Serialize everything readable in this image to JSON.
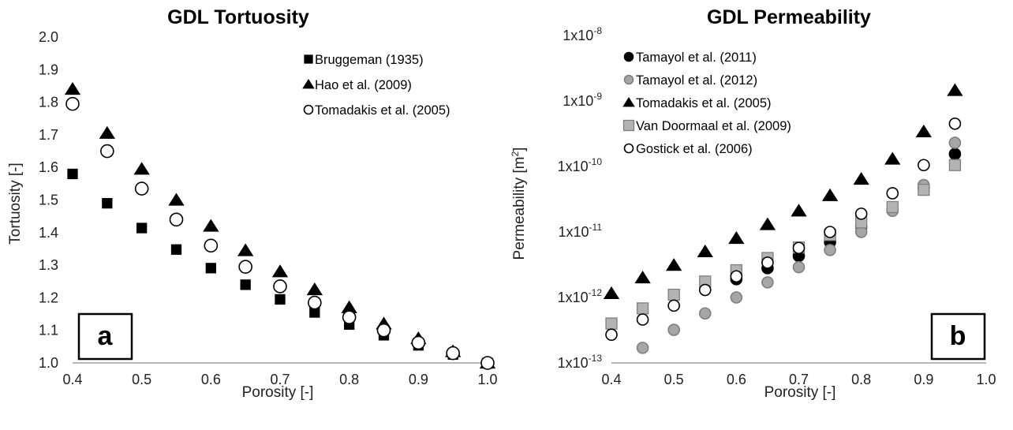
{
  "chart_data": [
    {
      "type": "scatter",
      "title": "GDL Tortuosity",
      "xlabel": "Porosity [-]",
      "ylabel": "Tortuosity [-]",
      "panel_label": "a",
      "xlim": [
        0.4,
        1.0
      ],
      "ylim": [
        1.0,
        2.0
      ],
      "xticks": [
        0.4,
        0.5,
        0.6,
        0.7,
        0.8,
        0.9,
        1.0
      ],
      "xtick_labels": [
        "0.4",
        "0.5",
        "0.6",
        "0.7",
        "0.8",
        "0.9",
        "1.0"
      ],
      "yticks": [
        1.0,
        1.1,
        1.2,
        1.3,
        1.4,
        1.5,
        1.6,
        1.7,
        1.8,
        1.9,
        2.0
      ],
      "ytick_labels": [
        "1.0",
        "1.1",
        "1.2",
        "1.3",
        "1.4",
        "1.5",
        "1.6",
        "1.7",
        "1.8",
        "1.9",
        "2.0"
      ],
      "legend_position": "top-right",
      "series": [
        {
          "name": "Bruggeman (1935)",
          "marker": "square",
          "fill": "#000000",
          "stroke": "#000000",
          "x": [
            0.4,
            0.45,
            0.5,
            0.55,
            0.6,
            0.65,
            0.7,
            0.75,
            0.8,
            0.85,
            0.9,
            0.95,
            1.0
          ],
          "y": [
            1.58,
            1.49,
            1.414,
            1.348,
            1.291,
            1.24,
            1.195,
            1.155,
            1.118,
            1.085,
            1.054,
            1.026,
            1.0
          ]
        },
        {
          "name": "Hao et al. (2009)",
          "marker": "triangle",
          "fill": "#000000",
          "stroke": "#000000",
          "x": [
            0.4,
            0.45,
            0.5,
            0.55,
            0.6,
            0.65,
            0.7,
            0.75,
            0.8,
            0.85,
            0.9,
            0.95,
            1.0
          ],
          "y": [
            1.84,
            1.705,
            1.595,
            1.5,
            1.42,
            1.345,
            1.28,
            1.225,
            1.17,
            1.12,
            1.075,
            1.035,
            1.0
          ]
        },
        {
          "name": "Tomadakis et al. (2005)",
          "marker": "circle",
          "fill": "#ffffff",
          "stroke": "#000000",
          "x": [
            0.4,
            0.45,
            0.5,
            0.55,
            0.6,
            0.65,
            0.7,
            0.75,
            0.8,
            0.85,
            0.9,
            0.95,
            1.0
          ],
          "y": [
            1.795,
            1.65,
            1.535,
            1.44,
            1.36,
            1.295,
            1.235,
            1.185,
            1.14,
            1.1,
            1.062,
            1.03,
            1.0
          ]
        }
      ]
    },
    {
      "type": "scatter",
      "title": "GDL Permeability",
      "xlabel": "Porosity [-]",
      "ylabel": "Permeability [m",
      "ylabel_sup": "2",
      "ylabel_end": "]",
      "panel_label": "b",
      "y_scale": "log",
      "xlim": [
        0.4,
        1.0
      ],
      "ylim": [
        1e-13,
        1e-08
      ],
      "xticks": [
        0.4,
        0.5,
        0.6,
        0.7,
        0.8,
        0.9,
        1.0
      ],
      "xtick_labels": [
        "0.4",
        "0.5",
        "0.6",
        "0.7",
        "0.8",
        "0.9",
        "1.0"
      ],
      "yticks": [
        1e-13,
        1e-12,
        1e-11,
        1e-10,
        1e-09,
        1e-08
      ],
      "ytick_labels": [
        {
          "base": "1x10",
          "exp": "-13"
        },
        {
          "base": "1x10",
          "exp": "-12"
        },
        {
          "base": "1x10",
          "exp": "-11"
        },
        {
          "base": "1x10",
          "exp": "-10"
        },
        {
          "base": "1x10",
          "exp": "-9"
        },
        {
          "base": "1x10",
          "exp": "-8"
        }
      ],
      "legend_position": "top-left",
      "series": [
        {
          "name": "Tamayol et al. (2011)",
          "marker": "circle",
          "fill": "#000000",
          "stroke": "#000000",
          "x": [
            0.6,
            0.65,
            0.7,
            0.75,
            0.8,
            0.85,
            0.9,
            0.95
          ],
          "y": [
            1.9e-12,
            2.8e-12,
            4.3e-12,
            7e-12,
            1.2e-11,
            2.2e-11,
            4.7e-11,
            1.55e-10
          ]
        },
        {
          "name": "Tamayol et al. (2012)",
          "marker": "circle",
          "fill": "#a6a6a6",
          "stroke": "#7f7f7f",
          "x": [
            0.45,
            0.5,
            0.55,
            0.6,
            0.65,
            0.7,
            0.75,
            0.8,
            0.85,
            0.9,
            0.95
          ],
          "y": [
            1.7e-13,
            3.2e-13,
            5.7e-13,
            1e-12,
            1.7e-12,
            2.9e-12,
            5.3e-12,
            1e-11,
            2.1e-11,
            5.2e-11,
            2.3e-10
          ]
        },
        {
          "name": "Tomadakis et al. (2005)",
          "marker": "triangle",
          "fill": "#000000",
          "stroke": "#000000",
          "x": [
            0.4,
            0.45,
            0.5,
            0.55,
            0.6,
            0.65,
            0.7,
            0.75,
            0.8,
            0.85,
            0.9,
            0.95
          ],
          "y": [
            1.15e-12,
            2e-12,
            3.1e-12,
            5e-12,
            8e-12,
            1.3e-11,
            2.1e-11,
            3.6e-11,
            6.4e-11,
            1.3e-10,
            3.4e-10,
            1.45e-09
          ]
        },
        {
          "name": "Van Doormaal et al. (2009)",
          "marker": "square",
          "fill": "#b3b3b3",
          "stroke": "#7f7f7f",
          "x": [
            0.4,
            0.45,
            0.5,
            0.55,
            0.6,
            0.65,
            0.7,
            0.75,
            0.8,
            0.85,
            0.9,
            0.95
          ],
          "y": [
            4e-13,
            6.8e-13,
            1.1e-12,
            1.75e-12,
            2.6e-12,
            4e-12,
            5.8e-12,
            9e-12,
            1.4e-11,
            2.4e-11,
            4.4e-11,
            1.05e-10
          ]
        },
        {
          "name": "Gostick et al. (2006)",
          "marker": "circle",
          "fill": "#ffffff",
          "stroke": "#000000",
          "x": [
            0.4,
            0.45,
            0.5,
            0.55,
            0.6,
            0.65,
            0.7,
            0.75,
            0.8,
            0.85,
            0.9,
            0.95
          ],
          "y": [
            2.7e-13,
            4.6e-13,
            7.5e-13,
            1.3e-12,
            2.1e-12,
            3.4e-12,
            5.7e-12,
            1e-11,
            1.9e-11,
            3.9e-11,
            1.05e-10,
            4.5e-10
          ]
        }
      ]
    }
  ]
}
